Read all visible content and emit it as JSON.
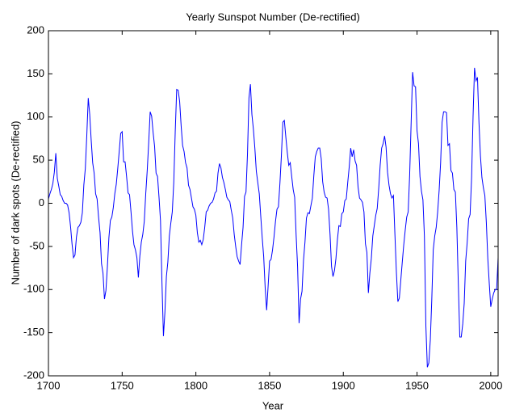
{
  "chart_data": {
    "type": "line",
    "title": "Yearly Sunspot Number (De-rectified)",
    "x_label": "Year",
    "y_label": "Number of dark spots (De-rectified)",
    "xlim": [
      1700,
      2005
    ],
    "xticks": [
      1700,
      1750,
      1800,
      1850,
      1900,
      1950,
      2000
    ],
    "ylim": [
      -200,
      200
    ],
    "yticks": [
      -200,
      -150,
      -100,
      -50,
      0,
      50,
      100,
      150,
      200
    ],
    "grid": false,
    "x": [
      1700,
      1701,
      1702,
      1703,
      1704,
      1705,
      1706,
      1707,
      1708,
      1709,
      1710,
      1711,
      1712,
      1713,
      1714,
      1715,
      1716,
      1717,
      1718,
      1719,
      1720,
      1721,
      1722,
      1723,
      1724,
      1725,
      1726,
      1727,
      1728,
      1729,
      1730,
      1731,
      1732,
      1733,
      1734,
      1735,
      1736,
      1737,
      1738,
      1739,
      1740,
      1741,
      1742,
      1743,
      1744,
      1745,
      1746,
      1747,
      1748,
      1749,
      1750,
      1751,
      1752,
      1753,
      1754,
      1755,
      1756,
      1757,
      1758,
      1759,
      1760,
      1761,
      1762,
      1763,
      1764,
      1765,
      1766,
      1767,
      1768,
      1769,
      1770,
      1771,
      1772,
      1773,
      1774,
      1775,
      1776,
      1777,
      1778,
      1779,
      1780,
      1781,
      1782,
      1783,
      1784,
      1785,
      1786,
      1787,
      1788,
      1789,
      1790,
      1791,
      1792,
      1793,
      1794,
      1795,
      1796,
      1797,
      1798,
      1799,
      1800,
      1801,
      1802,
      1803,
      1804,
      1805,
      1806,
      1807,
      1808,
      1809,
      1810,
      1811,
      1812,
      1813,
      1814,
      1815,
      1816,
      1817,
      1818,
      1819,
      1820,
      1821,
      1822,
      1823,
      1824,
      1825,
      1826,
      1827,
      1828,
      1829,
      1830,
      1831,
      1832,
      1833,
      1834,
      1835,
      1836,
      1837,
      1838,
      1839,
      1840,
      1841,
      1842,
      1843,
      1844,
      1845,
      1846,
      1847,
      1848,
      1849,
      1850,
      1851,
      1852,
      1853,
      1854,
      1855,
      1856,
      1857,
      1858,
      1859,
      1860,
      1861,
      1862,
      1863,
      1864,
      1865,
      1866,
      1867,
      1868,
      1869,
      1870,
      1871,
      1872,
      1873,
      1874,
      1875,
      1876,
      1877,
      1878,
      1879,
      1880,
      1881,
      1882,
      1883,
      1884,
      1885,
      1886,
      1887,
      1888,
      1889,
      1890,
      1891,
      1892,
      1893,
      1894,
      1895,
      1896,
      1897,
      1898,
      1899,
      1900,
      1901,
      1902,
      1903,
      1904,
      1905,
      1906,
      1907,
      1908,
      1909,
      1910,
      1911,
      1912,
      1913,
      1914,
      1915,
      1916,
      1917,
      1918,
      1919,
      1920,
      1921,
      1922,
      1923,
      1924,
      1925,
      1926,
      1927,
      1928,
      1929,
      1930,
      1931,
      1932,
      1933,
      1934,
      1935,
      1936,
      1937,
      1938,
      1939,
      1940,
      1941,
      1942,
      1943,
      1944,
      1945,
      1946,
      1947,
      1948,
      1949,
      1950,
      1951,
      1952,
      1953,
      1954,
      1955,
      1956,
      1957,
      1958,
      1959,
      1960,
      1961,
      1962,
      1963,
      1964,
      1965,
      1966,
      1967,
      1968,
      1969,
      1970,
      1971,
      1972,
      1973,
      1974,
      1975,
      1976,
      1977,
      1978,
      1979,
      1980,
      1981,
      1982,
      1983,
      1984,
      1985,
      1986,
      1987,
      1988,
      1989,
      1990,
      1991,
      1992,
      1993,
      1994,
      1995,
      1996,
      1997,
      1998,
      1999,
      2000,
      2001,
      2002,
      2003,
      2004,
      2005
    ],
    "color": "#0000ff",
    "values": [
      5,
      11,
      16,
      23,
      36,
      58,
      29,
      20,
      10,
      8,
      3,
      0,
      0,
      -2,
      -11,
      -27,
      -47,
      -63,
      -60,
      -39,
      -28,
      -26,
      -22,
      -11,
      21,
      40,
      78,
      122,
      103,
      73,
      47,
      35,
      11,
      5,
      -16,
      -34,
      -70,
      -81,
      -111,
      -101,
      -73,
      -40,
      -20,
      -16,
      -5,
      11,
      22,
      40,
      60,
      81,
      83,
      48,
      48,
      31,
      12,
      10,
      -10,
      -32,
      -48,
      -54,
      -63,
      -86,
      -61,
      -45,
      -36,
      -21,
      11,
      38,
      70,
      106,
      101,
      82,
      66,
      35,
      31,
      7,
      -20,
      -92,
      -154,
      -126,
      -85,
      -68,
      -38,
      -23,
      -10,
      24,
      83,
      132,
      131,
      118,
      90,
      67,
      60,
      47,
      41,
      21,
      16,
      6,
      -4,
      -7,
      -14,
      -34,
      -45,
      -43,
      -48,
      -42,
      -28,
      -10,
      -8,
      -3,
      0,
      1,
      5,
      12,
      14,
      35,
      46,
      41,
      30,
      24,
      16,
      7,
      4,
      2,
      -8,
      -17,
      -36,
      -50,
      -62,
      -67,
      -71,
      -48,
      -28,
      8,
      13,
      57,
      122,
      138,
      103,
      86,
      64,
      37,
      24,
      11,
      -15,
      -40,
      -62,
      -98,
      -124,
      -96,
      -67,
      -65,
      -54,
      -39,
      -21,
      -7,
      -4,
      23,
      55,
      94,
      96,
      77,
      59,
      44,
      47,
      31,
      16,
      7,
      -37,
      -74,
      -139,
      -111,
      -102,
      -66,
      -45,
      -17,
      -11,
      -12,
      -3,
      6,
      32,
      54,
      60,
      64,
      64,
      52,
      25,
      13,
      7,
      6,
      -7,
      -36,
      -73,
      -85,
      -78,
      -64,
      -42,
      -26,
      -27,
      -12,
      -10,
      3,
      5,
      24,
      42,
      64,
      54,
      62,
      49,
      44,
      19,
      6,
      4,
      1,
      -10,
      -47,
      -57,
      -104,
      -81,
      -64,
      -38,
      -26,
      -14,
      -6,
      17,
      44,
      64,
      69,
      78,
      65,
      36,
      21,
      11,
      6,
      9,
      -36,
      -80,
      -114,
      -110,
      -89,
      -68,
      -48,
      -31,
      -16,
      -10,
      33,
      93,
      152,
      136,
      135,
      84,
      69,
      31,
      14,
      4,
      -38,
      -142,
      -190,
      -185,
      -159,
      -112,
      -54,
      -38,
      -28,
      -10,
      15,
      47,
      94,
      106,
      106,
      105,
      67,
      69,
      38,
      35,
      16,
      13,
      -28,
      -93,
      -155,
      -155,
      -140,
      -116,
      -67,
      -46,
      -18,
      -13,
      29,
      100,
      157,
      142,
      146,
      94,
      55,
      30,
      18,
      9,
      -22,
      -64,
      -93,
      -120,
      -111,
      -104,
      -100,
      -100,
      -63
    ]
  }
}
